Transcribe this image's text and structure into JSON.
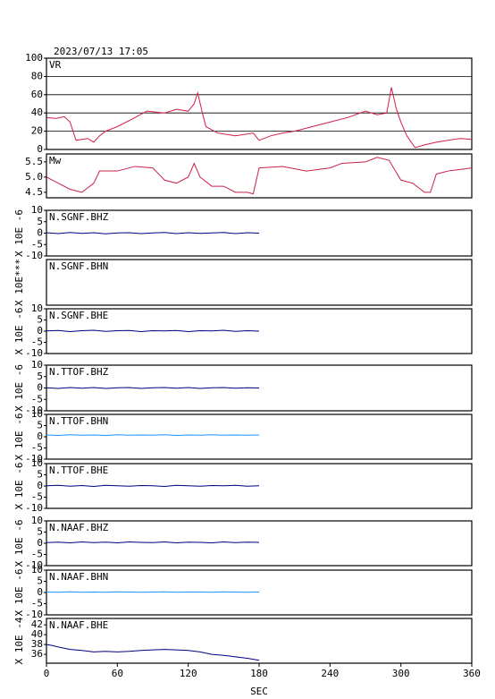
{
  "chart_data": [
    {
      "type": "line",
      "title": "2023/07/13 17:05",
      "label": "VR",
      "color": "#d0204a",
      "grid": true,
      "xlim": [
        0,
        360
      ],
      "ylim": [
        0,
        100
      ],
      "yticks": [
        0,
        20,
        40,
        60,
        80,
        100
      ],
      "x": [
        0,
        8,
        15,
        20,
        25,
        35,
        40,
        45,
        50,
        60,
        75,
        85,
        100,
        110,
        120,
        125,
        128,
        132,
        135,
        145,
        160,
        175,
        180,
        190,
        200,
        210,
        225,
        240,
        255,
        270,
        280,
        288,
        292,
        296,
        300,
        305,
        312,
        320,
        330,
        340,
        350,
        360
      ],
      "values": [
        35,
        34,
        36,
        30,
        10,
        12,
        8,
        15,
        20,
        25,
        35,
        42,
        40,
        44,
        42,
        50,
        62,
        40,
        25,
        18,
        15,
        18,
        10,
        15,
        18,
        20,
        25,
        30,
        35,
        42,
        38,
        40,
        68,
        45,
        30,
        15,
        2,
        5,
        8,
        10,
        12,
        11
      ]
    },
    {
      "type": "line",
      "label": "Mw",
      "color": "#c8204a",
      "xlim": [
        0,
        360
      ],
      "ylim": [
        4.32,
        5.76
      ],
      "yticks": [
        4.5,
        {
          "value": 5,
          "label": "5.0"
        },
        5.5
      ],
      "x": [
        0,
        10,
        20,
        30,
        40,
        45,
        60,
        75,
        90,
        95,
        100,
        110,
        120,
        125,
        130,
        140,
        150,
        160,
        170,
        175,
        180,
        200,
        220,
        240,
        250,
        270,
        280,
        290,
        300,
        310,
        320,
        325,
        330,
        340,
        350,
        360
      ],
      "values": [
        5.0,
        4.8,
        4.6,
        4.5,
        4.8,
        5.2,
        5.2,
        5.35,
        5.3,
        5.1,
        4.9,
        4.8,
        5.0,
        5.45,
        5.0,
        4.7,
        4.7,
        4.5,
        4.5,
        4.45,
        5.3,
        5.35,
        5.2,
        5.3,
        5.45,
        5.5,
        5.65,
        5.55,
        4.9,
        4.8,
        4.5,
        4.5,
        5.1,
        5.2,
        5.25,
        5.3
      ]
    },
    {
      "type": "line",
      "label": "N.SGNF.BHZ",
      "ylabel": "X 10E -6",
      "color": "#000080",
      "xlim": [
        0,
        360
      ],
      "ylim": [
        -10,
        10
      ],
      "yticks": [
        -10,
        -5,
        0,
        5,
        10
      ],
      "x": [
        0,
        10,
        20,
        30,
        40,
        50,
        60,
        70,
        80,
        90,
        100,
        110,
        120,
        130,
        140,
        150,
        160,
        170,
        180
      ],
      "values": [
        0.2,
        -0.2,
        0.3,
        -0.1,
        0.2,
        -0.3,
        0.1,
        0.2,
        -0.2,
        0.1,
        0.3,
        -0.2,
        0.2,
        -0.1,
        0.1,
        0.3,
        -0.2,
        0.2,
        0
      ]
    },
    {
      "type": "line",
      "label": "N.SGNF.BHN",
      "ylabel": "X 10E***",
      "xlim": [
        0,
        360
      ]
    },
    {
      "type": "line",
      "label": "N.SGNF.BHE",
      "ylabel": "X 10E -6",
      "color": "#000080",
      "xlim": [
        0,
        360
      ],
      "ylim": [
        -10,
        10
      ],
      "yticks": [
        -10,
        -5,
        0,
        5,
        10
      ],
      "x": [
        0,
        10,
        20,
        30,
        40,
        50,
        60,
        70,
        80,
        90,
        100,
        110,
        120,
        130,
        140,
        150,
        160,
        170,
        180
      ],
      "values": [
        0.1,
        0.3,
        -0.2,
        0.2,
        0.4,
        -0.1,
        0.2,
        0.3,
        -0.2,
        0.2,
        0.1,
        0.3,
        -0.2,
        0.2,
        0.1,
        0.4,
        -0.1,
        0.2,
        0
      ]
    },
    {
      "type": "line",
      "label": "N.TTOF.BHZ",
      "ylabel": "X 10E -6",
      "color": "#000080",
      "xlim": [
        0,
        360
      ],
      "ylim": [
        -10,
        10
      ],
      "yticks": [
        -10,
        -5,
        0,
        5,
        10
      ],
      "x": [
        0,
        10,
        20,
        30,
        40,
        50,
        60,
        70,
        80,
        90,
        100,
        110,
        120,
        130,
        140,
        150,
        160,
        170,
        180
      ],
      "values": [
        0.1,
        -0.2,
        0.2,
        -0.1,
        0.2,
        -0.2,
        0.1,
        0.2,
        -0.2,
        0.1,
        0.2,
        -0.1,
        0.2,
        -0.2,
        0.1,
        0.2,
        -0.1,
        0.1,
        0
      ]
    },
    {
      "type": "line",
      "label": "N.TTOF.BHN",
      "ylabel": "X 10E -6",
      "color": "#1e90ff",
      "xlim": [
        0,
        360
      ],
      "ylim": [
        -10,
        10
      ],
      "yticks": [
        -10,
        -5,
        0,
        5,
        10
      ],
      "x": [
        0,
        10,
        20,
        30,
        40,
        50,
        60,
        70,
        80,
        90,
        100,
        110,
        120,
        130,
        140,
        150,
        160,
        170,
        180
      ],
      "values": [
        0.8,
        0.6,
        0.9,
        0.7,
        0.8,
        0.6,
        0.9,
        0.7,
        0.8,
        0.7,
        0.9,
        0.6,
        0.8,
        0.7,
        0.9,
        0.7,
        0.8,
        0.7,
        0.8
      ]
    },
    {
      "type": "line",
      "label": "N.TTOF.BHE",
      "ylabel": "X 10E -6",
      "color": "#000080",
      "xlim": [
        0,
        360
      ],
      "ylim": [
        -10,
        10
      ],
      "yticks": [
        -10,
        -5,
        0,
        5,
        10
      ],
      "x": [
        0,
        10,
        20,
        30,
        40,
        50,
        60,
        70,
        80,
        90,
        100,
        110,
        120,
        130,
        140,
        150,
        160,
        170,
        180
      ],
      "values": [
        0.1,
        0.3,
        -0.1,
        0.2,
        -0.2,
        0.3,
        0.1,
        -0.1,
        0.2,
        0.1,
        -0.2,
        0.3,
        0.1,
        -0.1,
        0.2,
        0.1,
        0.3,
        -0.1,
        0.1
      ]
    },
    {
      "type": "line",
      "label": "N.NAAF.BHZ",
      "ylabel": "X 10E -6",
      "color": "#000080",
      "xlim": [
        0,
        360
      ],
      "ylim": [
        -10,
        10
      ],
      "yticks": [
        -10,
        -5,
        0,
        5,
        10
      ],
      "x": [
        0,
        10,
        20,
        30,
        40,
        50,
        60,
        70,
        80,
        90,
        100,
        110,
        120,
        130,
        140,
        150,
        160,
        170,
        180
      ],
      "values": [
        0.3,
        0.5,
        0.2,
        0.6,
        0.3,
        0.5,
        0.2,
        0.6,
        0.4,
        0.3,
        0.6,
        0.2,
        0.5,
        0.4,
        0.2,
        0.6,
        0.3,
        0.5,
        0.4
      ]
    },
    {
      "type": "line",
      "label": "N.NAAF.BHN",
      "ylabel": "X 10E -6",
      "color": "#1e90ff",
      "xlim": [
        0,
        360
      ],
      "ylim": [
        -10,
        10
      ],
      "yticks": [
        -10,
        -5,
        0,
        5,
        10
      ],
      "x": [
        0,
        10,
        20,
        30,
        40,
        50,
        60,
        70,
        80,
        90,
        100,
        110,
        120,
        130,
        140,
        150,
        160,
        170,
        180
      ],
      "values": [
        0.2,
        0.1,
        0.3,
        0.1,
        0.2,
        0.1,
        0.3,
        0.2,
        0.1,
        0.2,
        0.3,
        0.1,
        0.2,
        0.2,
        0.1,
        0.3,
        0.2,
        0.1,
        0.2
      ]
    },
    {
      "type": "line",
      "label": "N.NAAF.BHE",
      "ylabel": "X 10E -4",
      "color": "#000080",
      "xlabel": "SEC",
      "xlim": [
        0,
        360
      ],
      "xticks": [
        0,
        60,
        120,
        180,
        240,
        300,
        360
      ],
      "ylim": [
        34.2,
        43.3
      ],
      "yticks": [
        36,
        38,
        40,
        42
      ],
      "x": [
        0,
        5,
        10,
        20,
        30,
        40,
        50,
        60,
        70,
        80,
        90,
        100,
        110,
        120,
        130,
        140,
        150,
        160,
        170,
        175,
        180
      ],
      "values": [
        38,
        37.8,
        37.5,
        37,
        36.8,
        36.5,
        36.6,
        36.5,
        36.6,
        36.8,
        36.9,
        37,
        36.9,
        36.8,
        36.5,
        36,
        35.8,
        35.5,
        35.2,
        35,
        34.8
      ]
    }
  ]
}
